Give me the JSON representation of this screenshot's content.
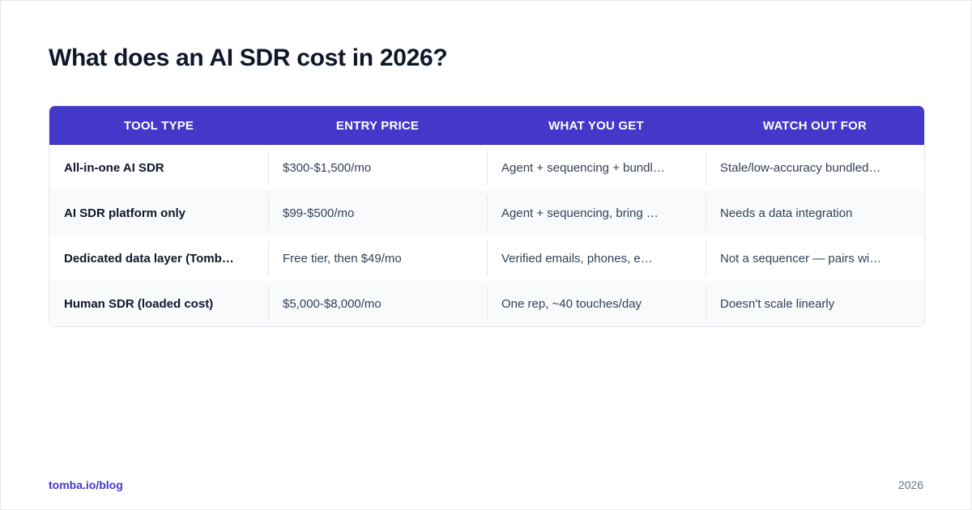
{
  "title": "What does an AI SDR cost in 2026?",
  "table": {
    "headers": [
      "TOOL TYPE",
      "ENTRY PRICE",
      "WHAT YOU GET",
      "WATCH OUT FOR"
    ],
    "rows": [
      [
        "All-in-one AI SDR",
        "$300-$1,500/mo",
        "Agent + sequencing + bundl…",
        "Stale/low-accuracy bundled…"
      ],
      [
        "AI SDR platform only",
        "$99-$500/mo",
        "Agent + sequencing, bring …",
        "Needs a data integration"
      ],
      [
        "Dedicated data layer (Tomb…",
        "Free tier, then $49/mo",
        "Verified emails, phones, e…",
        "Not a sequencer — pairs wi…"
      ],
      [
        "Human SDR (loaded cost)",
        "$5,000-$8,000/mo",
        "One rep, ~40 touches/day",
        "Doesn't scale linearly"
      ]
    ]
  },
  "footer": {
    "source": "tomba.io/blog",
    "year": "2026"
  }
}
